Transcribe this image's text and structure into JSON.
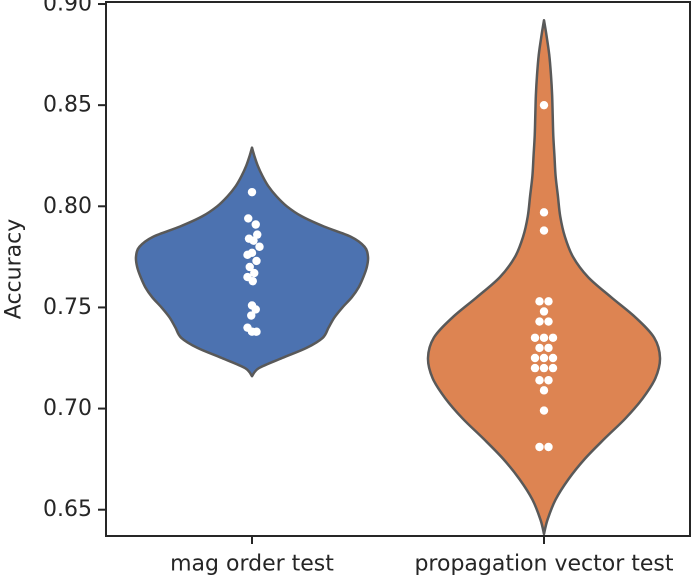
{
  "chart_data": {
    "type": "violin",
    "title": "",
    "xlabel": "",
    "ylabel": "Accuracy",
    "ylim": [
      0.637,
      0.901
    ],
    "yticks": [
      0.65,
      0.7,
      0.75,
      0.8,
      0.85,
      0.9
    ],
    "ytick_labels": [
      "0.65",
      "0.70",
      "0.75",
      "0.80",
      "0.85",
      "0.90"
    ],
    "grid": false,
    "categories": [
      "mag order test",
      "propagation vector test"
    ],
    "series": [
      {
        "category": "mag order test",
        "color": "#4c72b0",
        "range": [
          0.716,
          0.829
        ],
        "profile": [
          [
            0.716,
            0.0
          ],
          [
            0.72,
            0.06
          ],
          [
            0.725,
            0.26
          ],
          [
            0.73,
            0.47
          ],
          [
            0.735,
            0.61
          ],
          [
            0.74,
            0.66
          ],
          [
            0.745,
            0.71
          ],
          [
            0.75,
            0.78
          ],
          [
            0.755,
            0.86
          ],
          [
            0.76,
            0.92
          ],
          [
            0.765,
            0.96
          ],
          [
            0.77,
            0.99
          ],
          [
            0.775,
            1.0
          ],
          [
            0.78,
            0.97
          ],
          [
            0.785,
            0.85
          ],
          [
            0.79,
            0.62
          ],
          [
            0.795,
            0.43
          ],
          [
            0.8,
            0.3
          ],
          [
            0.805,
            0.21
          ],
          [
            0.81,
            0.14
          ],
          [
            0.815,
            0.09
          ],
          [
            0.82,
            0.05
          ],
          [
            0.825,
            0.02
          ],
          [
            0.829,
            0.0
          ]
        ],
        "points": [
          [
            0.807,
            0.0
          ],
          [
            0.794,
            -0.5
          ],
          [
            0.791,
            0.5
          ],
          [
            0.786,
            0.7
          ],
          [
            0.784,
            -0.4
          ],
          [
            0.783,
            0.2
          ],
          [
            0.78,
            1.0
          ],
          [
            0.777,
            0.0
          ],
          [
            0.776,
            -0.6
          ],
          [
            0.773,
            0.6
          ],
          [
            0.77,
            -0.3
          ],
          [
            0.767,
            0.3
          ],
          [
            0.765,
            -0.6
          ],
          [
            0.763,
            0.1
          ],
          [
            0.751,
            0.0
          ],
          [
            0.749,
            0.5
          ],
          [
            0.746,
            -0.1
          ],
          [
            0.74,
            -0.6
          ],
          [
            0.738,
            0.0
          ],
          [
            0.738,
            0.6
          ]
        ]
      },
      {
        "category": "propagation vector test",
        "color": "#dd8452",
        "range": [
          0.638,
          0.892
        ],
        "profile": [
          [
            0.638,
            0.0
          ],
          [
            0.645,
            0.03
          ],
          [
            0.655,
            0.1
          ],
          [
            0.665,
            0.21
          ],
          [
            0.675,
            0.35
          ],
          [
            0.685,
            0.52
          ],
          [
            0.695,
            0.7
          ],
          [
            0.705,
            0.85
          ],
          [
            0.715,
            0.96
          ],
          [
            0.725,
            1.0
          ],
          [
            0.735,
            0.95
          ],
          [
            0.745,
            0.79
          ],
          [
            0.755,
            0.58
          ],
          [
            0.765,
            0.38
          ],
          [
            0.775,
            0.25
          ],
          [
            0.785,
            0.18
          ],
          [
            0.795,
            0.14
          ],
          [
            0.805,
            0.12
          ],
          [
            0.815,
            0.1
          ],
          [
            0.825,
            0.09
          ],
          [
            0.835,
            0.08
          ],
          [
            0.845,
            0.075
          ],
          [
            0.855,
            0.07
          ],
          [
            0.865,
            0.06
          ],
          [
            0.875,
            0.045
          ],
          [
            0.885,
            0.02
          ],
          [
            0.892,
            0.0
          ]
        ],
        "points": [
          [
            0.85,
            0.0
          ],
          [
            0.797,
            0.0
          ],
          [
            0.788,
            0.0
          ],
          [
            0.753,
            -0.6
          ],
          [
            0.753,
            0.6
          ],
          [
            0.748,
            0.0
          ],
          [
            0.743,
            -0.6
          ],
          [
            0.743,
            0.6
          ],
          [
            0.735,
            -1.2
          ],
          [
            0.735,
            0.0
          ],
          [
            0.735,
            1.2
          ],
          [
            0.73,
            -0.6
          ],
          [
            0.73,
            0.6
          ],
          [
            0.725,
            -1.2
          ],
          [
            0.725,
            0.0
          ],
          [
            0.725,
            1.2
          ],
          [
            0.72,
            -1.2
          ],
          [
            0.72,
            0.0
          ],
          [
            0.72,
            1.2
          ],
          [
            0.714,
            -0.6
          ],
          [
            0.714,
            0.6
          ],
          [
            0.709,
            0.0
          ],
          [
            0.699,
            0.0
          ],
          [
            0.681,
            -0.6
          ],
          [
            0.681,
            0.6
          ]
        ]
      }
    ]
  }
}
